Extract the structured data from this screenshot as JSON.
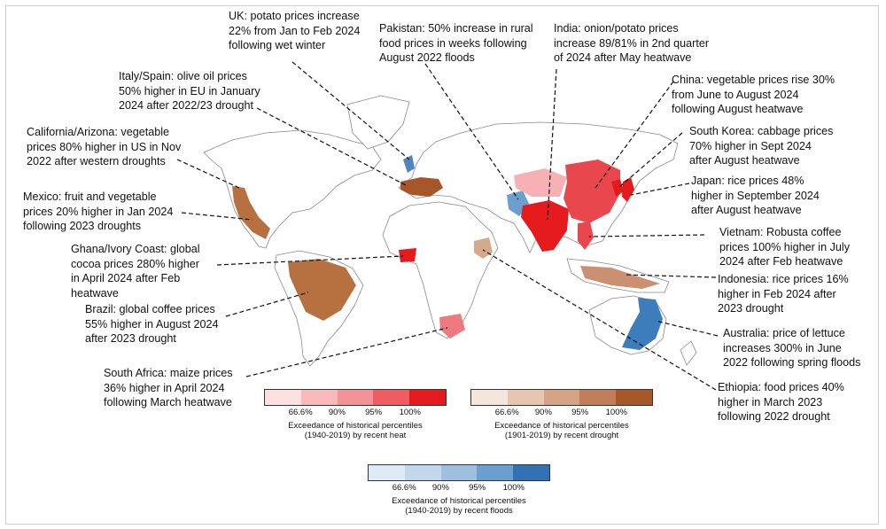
{
  "annotations": [
    {
      "id": "uk",
      "text": "UK: potato prices increase\n22% from Jan to Feb 2024\nfollowing wet winter"
    },
    {
      "id": "pakistan",
      "text": "Pakistan: 50% increase in rural\nfood prices in weeks following\nAugust 2022 floods"
    },
    {
      "id": "india",
      "text": "India: onion/potato prices\nincrease 89/81% in 2nd quarter\nof 2024 after May heatwave"
    },
    {
      "id": "italy-spain",
      "text": "Italy/Spain: olive oil prices\n50% higher in EU in January\n2024 after 2022/23 drought"
    },
    {
      "id": "china",
      "text": "China: vegetable prices rise 30%\nfrom June to August 2024\nfollowing August heatwave"
    },
    {
      "id": "california-arizona",
      "text": "California/Arizona: vegetable\nprices 80% higher in US in Nov\n2022 after western droughts"
    },
    {
      "id": "south-korea",
      "text": "South Korea: cabbage prices\n70% higher in Sept 2024\nafter August heatwave"
    },
    {
      "id": "mexico",
      "text": "Mexico: fruit and vegetable\nprices 20% higher in Jan 2024\nfollowing 2023 droughts"
    },
    {
      "id": "japan",
      "text": "Japan: rice prices 48%\nhigher in September 2024\nafter August heatwave"
    },
    {
      "id": "vietnam",
      "text": "Vietnam: Robusta coffee\nprices 100% higher in July\n2024 after Feb heatwave"
    },
    {
      "id": "ghana-ivory-coast",
      "text": "Ghana/Ivory Coast: global\ncocoa prices 280% higher\nin April 2024 after Feb\nheatwave"
    },
    {
      "id": "indonesia",
      "text": "Indonesia: rice prices 16%\nhigher in Feb 2024 after\n2023 drought"
    },
    {
      "id": "brazil",
      "text": "Brazil: global coffee prices\n55% higher in August 2024\nafter 2023 drought"
    },
    {
      "id": "australia",
      "text": "Australia: price of lettuce\nincreases 300% in June\n2022 following spring floods"
    },
    {
      "id": "south-africa",
      "text": "South Africa: maize prices\n36% higher in April 2024\nfollowing March heatwave"
    },
    {
      "id": "ethiopia",
      "text": "Ethiopia: food prices 40%\nhigher in March 2023\nfollowing 2022 drought"
    }
  ],
  "legends": [
    {
      "id": "heat",
      "caption": "Exceedance of historical percentiles\n(1940-2019) by recent heat",
      "ticks": [
        "66.6%",
        "90%",
        "95%",
        "100%"
      ],
      "colors": [
        "#fde0e0",
        "#f9b9bb",
        "#f49397",
        "#ef5c62",
        "#e41a1c"
      ]
    },
    {
      "id": "drought",
      "caption": "Exceedance of historical percentiles\n(1901-2019) by recent drought",
      "ticks": [
        "66.6%",
        "90%",
        "95%",
        "100%"
      ],
      "colors": [
        "#f5e6dc",
        "#e6c6b0",
        "#d5a486",
        "#c17e59",
        "#a65628"
      ]
    },
    {
      "id": "floods",
      "caption": "Exceedance of historical percentiles\n(1940-2019) by recent floods",
      "ticks": [
        "66.6%",
        "90%",
        "95%",
        "100%"
      ],
      "colors": [
        "#deebf7",
        "#c1d7ec",
        "#9ebfdf",
        "#6a9fcf",
        "#3171b4"
      ]
    }
  ],
  "colors": {
    "heat": "#e41a1c",
    "drought": "#a65628",
    "flood": "#3a78b8",
    "land_outline": "#8c8c8c",
    "leader": "#111111"
  }
}
